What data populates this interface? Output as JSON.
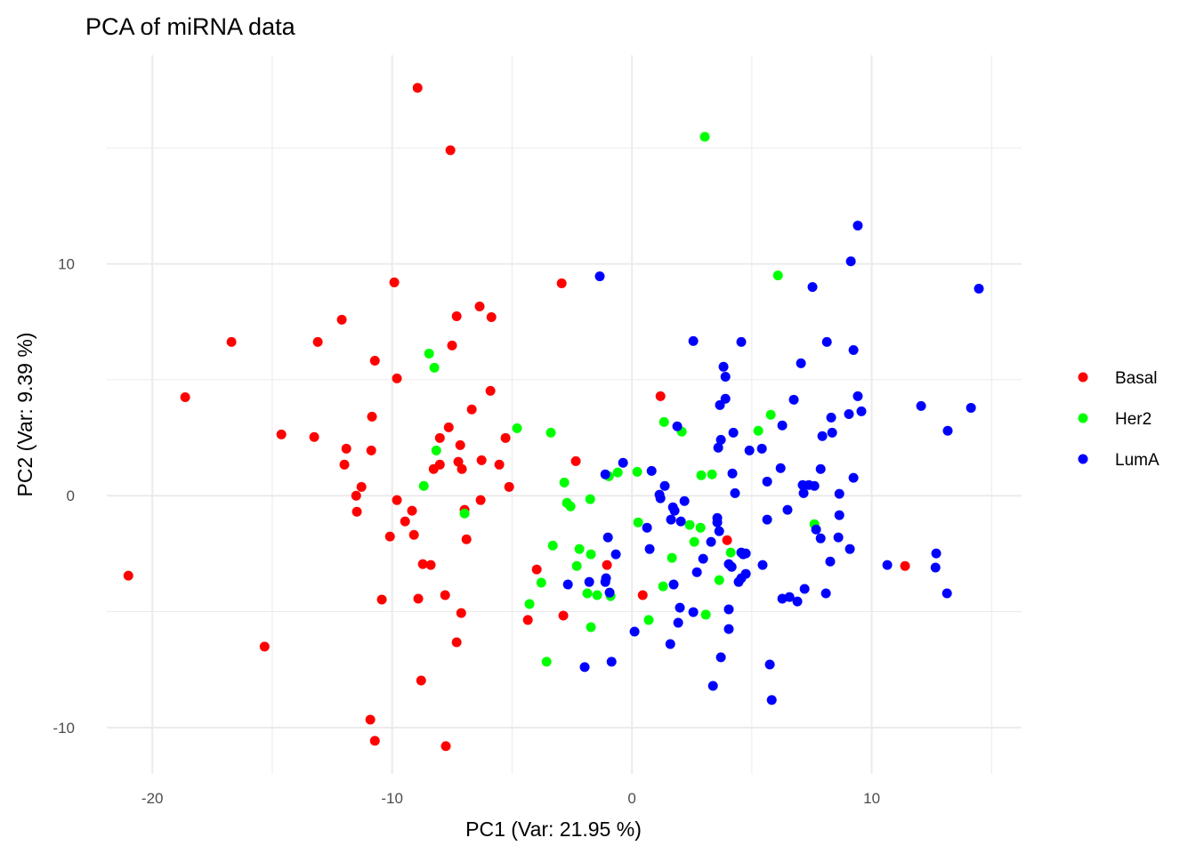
{
  "chart_data": {
    "type": "scatter",
    "title": "PCA of miRNA data",
    "xlabel": "PC1 (Var:  21.95 %)",
    "ylabel": "PC2 (Var:  9.39 %)",
    "xlim": [
      -21.9,
      16.25
    ],
    "ylim": [
      -12.0,
      19.0
    ],
    "x_ticks": [
      -20,
      -10,
      0,
      10
    ],
    "x_tick_labels": [
      "-20",
      "-10",
      "0",
      "10"
    ],
    "y_ticks": [
      -10,
      0,
      10
    ],
    "y_tick_labels": [
      "-10",
      "0",
      "10"
    ],
    "grid": true,
    "legend_position": "right",
    "series": [
      {
        "name": "Basal",
        "color": "#FF0000",
        "points": [
          [
            -8.94,
            17.59
          ],
          [
            -7.57,
            14.9
          ],
          [
            -9.91,
            9.2
          ],
          [
            -2.93,
            9.16
          ],
          [
            -6.35,
            8.16
          ],
          [
            -12.1,
            7.59
          ],
          [
            -7.31,
            7.74
          ],
          [
            -5.86,
            7.7
          ],
          [
            -16.7,
            6.63
          ],
          [
            -13.1,
            6.63
          ],
          [
            -7.5,
            6.48
          ],
          [
            -10.72,
            5.82
          ],
          [
            -9.8,
            5.06
          ],
          [
            -5.9,
            4.52
          ],
          [
            -18.63,
            4.25
          ],
          [
            1.19,
            4.29
          ],
          [
            -6.68,
            3.72
          ],
          [
            -10.84,
            3.41
          ],
          [
            -7.64,
            2.95
          ],
          [
            -14.62,
            2.64
          ],
          [
            -13.25,
            2.53
          ],
          [
            -8.01,
            2.49
          ],
          [
            -5.27,
            2.49
          ],
          [
            -7.16,
            2.18
          ],
          [
            -11.91,
            2.03
          ],
          [
            -10.87,
            1.95
          ],
          [
            -2.34,
            1.49
          ],
          [
            -6.27,
            1.53
          ],
          [
            -7.24,
            1.46
          ],
          [
            -8.01,
            1.34
          ],
          [
            -5.53,
            1.34
          ],
          [
            -11.99,
            1.34
          ],
          [
            -8.27,
            1.15
          ],
          [
            -7.09,
            1.15
          ],
          [
            -11.28,
            0.38
          ],
          [
            -5.12,
            0.38
          ],
          [
            -11.5,
            0.0
          ],
          [
            -9.8,
            -0.19
          ],
          [
            -6.31,
            -0.19
          ],
          [
            -11.47,
            -0.69
          ],
          [
            -6.98,
            -0.61
          ],
          [
            -9.46,
            -1.11
          ],
          [
            -9.17,
            -0.65
          ],
          [
            -10.09,
            -1.76
          ],
          [
            -9.09,
            -1.69
          ],
          [
            -6.9,
            -1.88
          ],
          [
            3.97,
            -1.92
          ],
          [
            -8.72,
            -2.95
          ],
          [
            -8.39,
            -2.99
          ],
          [
            -1.04,
            -2.99
          ],
          [
            -3.97,
            -3.18
          ],
          [
            -21.0,
            -3.45
          ],
          [
            11.39,
            -3.03
          ],
          [
            0.45,
            -4.29
          ],
          [
            -7.79,
            -4.29
          ],
          [
            -10.43,
            -4.48
          ],
          [
            -8.91,
            -4.44
          ],
          [
            -7.12,
            -5.06
          ],
          [
            -2.86,
            -5.17
          ],
          [
            -4.34,
            -5.36
          ],
          [
            -15.32,
            -6.51
          ],
          [
            -7.31,
            -6.32
          ],
          [
            -8.79,
            -7.97
          ],
          [
            -10.91,
            -9.66
          ],
          [
            -10.72,
            -10.57
          ],
          [
            -7.76,
            -10.8
          ]
        ]
      },
      {
        "name": "Her2",
        "color": "#00FF00",
        "points": [
          [
            3.04,
            15.48
          ],
          [
            6.09,
            9.5
          ],
          [
            -8.46,
            6.13
          ],
          [
            -8.24,
            5.52
          ],
          [
            -4.79,
            2.91
          ],
          [
            -3.38,
            2.72
          ],
          [
            -8.16,
            1.95
          ],
          [
            1.34,
            3.18
          ],
          [
            5.79,
            3.49
          ],
          [
            2.08,
            2.76
          ],
          [
            5.27,
            2.8
          ],
          [
            -0.59,
            1.0
          ],
          [
            -0.96,
            0.84
          ],
          [
            0.22,
            1.03
          ],
          [
            2.89,
            0.88
          ],
          [
            3.34,
            0.92
          ],
          [
            -2.82,
            0.57
          ],
          [
            -8.68,
            0.42
          ],
          [
            -2.71,
            -0.31
          ],
          [
            -2.56,
            -0.46
          ],
          [
            -1.74,
            -0.15
          ],
          [
            -6.98,
            -0.77
          ],
          [
            0.26,
            -1.15
          ],
          [
            2.41,
            -1.26
          ],
          [
            2.86,
            -1.38
          ],
          [
            7.61,
            -1.23
          ],
          [
            2.6,
            -1.99
          ],
          [
            -3.3,
            -2.15
          ],
          [
            -2.19,
            -2.3
          ],
          [
            4.12,
            -2.45
          ],
          [
            -1.71,
            -2.53
          ],
          [
            1.67,
            -2.68
          ],
          [
            -2.3,
            -3.03
          ],
          [
            -3.78,
            -3.75
          ],
          [
            3.64,
            -3.64
          ],
          [
            1.3,
            -3.91
          ],
          [
            -1.86,
            -4.21
          ],
          [
            -1.45,
            -4.29
          ],
          [
            -0.89,
            -4.33
          ],
          [
            -4.27,
            -4.67
          ],
          [
            0.7,
            -5.36
          ],
          [
            3.08,
            -5.13
          ],
          [
            -1.71,
            -5.67
          ],
          [
            -3.56,
            -7.16
          ]
        ]
      },
      {
        "name": "LumA",
        "color": "#0000FF",
        "points": [
          [
            9.42,
            11.65
          ],
          [
            9.13,
            10.11
          ],
          [
            -1.34,
            9.46
          ],
          [
            7.53,
            9.0
          ],
          [
            14.47,
            8.93
          ],
          [
            2.56,
            6.67
          ],
          [
            4.56,
            6.63
          ],
          [
            8.13,
            6.63
          ],
          [
            9.24,
            6.28
          ],
          [
            7.05,
            5.71
          ],
          [
            3.82,
            5.56
          ],
          [
            3.9,
            5.13
          ],
          [
            9.42,
            4.29
          ],
          [
            3.9,
            4.18
          ],
          [
            6.75,
            4.14
          ],
          [
            12.06,
            3.87
          ],
          [
            14.14,
            3.79
          ],
          [
            3.67,
            3.91
          ],
          [
            9.57,
            3.64
          ],
          [
            9.05,
            3.52
          ],
          [
            8.31,
            3.37
          ],
          [
            1.89,
            2.99
          ],
          [
            6.27,
            3.03
          ],
          [
            13.17,
            2.8
          ],
          [
            8.35,
            2.72
          ],
          [
            7.94,
            2.57
          ],
          [
            4.23,
            2.72
          ],
          [
            3.71,
            2.41
          ],
          [
            3.6,
            2.07
          ],
          [
            5.42,
            2.03
          ],
          [
            4.9,
            1.95
          ],
          [
            -0.37,
            1.42
          ],
          [
            6.2,
            1.19
          ],
          [
            7.87,
            1.15
          ],
          [
            0.82,
            1.07
          ],
          [
            -1.11,
            0.92
          ],
          [
            4.19,
            0.96
          ],
          [
            9.24,
            0.77
          ],
          [
            5.64,
            0.61
          ],
          [
            1.37,
            0.42
          ],
          [
            7.12,
            0.46
          ],
          [
            7.38,
            0.46
          ],
          [
            7.61,
            0.42
          ],
          [
            4.3,
            0.11
          ],
          [
            1.15,
            0.04
          ],
          [
            7.16,
            0.11
          ],
          [
            8.65,
            0.08
          ],
          [
            1.19,
            -0.11
          ],
          [
            2.19,
            -0.23
          ],
          [
            1.71,
            -0.5
          ],
          [
            1.78,
            -0.65
          ],
          [
            6.49,
            -0.61
          ],
          [
            8.65,
            -0.84
          ],
          [
            3.56,
            -0.96
          ],
          [
            1.63,
            -1.03
          ],
          [
            5.64,
            -1.03
          ],
          [
            3.56,
            -1.15
          ],
          [
            2.04,
            -1.11
          ],
          [
            0.63,
            -1.38
          ],
          [
            7.68,
            -1.46
          ],
          [
            3.64,
            -1.53
          ],
          [
            -1.0,
            -1.8
          ],
          [
            7.87,
            -1.84
          ],
          [
            3.3,
            -1.99
          ],
          [
            8.61,
            -1.8
          ],
          [
            0.74,
            -2.3
          ],
          [
            9.09,
            -2.3
          ],
          [
            4.56,
            -2.45
          ],
          [
            4.75,
            -2.49
          ],
          [
            4.64,
            -2.53
          ],
          [
            12.69,
            -2.49
          ],
          [
            2.97,
            -2.72
          ],
          [
            -0.67,
            -2.53
          ],
          [
            8.27,
            -2.84
          ],
          [
            4.04,
            -2.95
          ],
          [
            4.16,
            -3.07
          ],
          [
            5.45,
            -2.99
          ],
          [
            10.65,
            -2.99
          ],
          [
            12.66,
            -3.1
          ],
          [
            4.75,
            -3.37
          ],
          [
            2.71,
            -3.3
          ],
          [
            4.56,
            -3.56
          ],
          [
            -1.08,
            -3.56
          ],
          [
            -1.78,
            -3.72
          ],
          [
            -2.67,
            -3.83
          ],
          [
            -1.11,
            -3.72
          ],
          [
            4.45,
            -3.72
          ],
          [
            1.74,
            -3.83
          ],
          [
            -0.93,
            -4.18
          ],
          [
            13.14,
            -4.21
          ],
          [
            8.09,
            -4.21
          ],
          [
            7.2,
            -4.02
          ],
          [
            6.27,
            -4.44
          ],
          [
            6.57,
            -4.37
          ],
          [
            6.9,
            -4.56
          ],
          [
            2.0,
            -4.83
          ],
          [
            4.04,
            -4.9
          ],
          [
            2.56,
            -5.02
          ],
          [
            1.93,
            -5.48
          ],
          [
            4.04,
            -5.75
          ],
          [
            0.11,
            -5.86
          ],
          [
            1.6,
            -6.4
          ],
          [
            -1.97,
            -7.39
          ],
          [
            -0.85,
            -7.16
          ],
          [
            3.71,
            -6.97
          ],
          [
            5.75,
            -7.28
          ],
          [
            3.38,
            -8.2
          ],
          [
            5.83,
            -8.81
          ]
        ]
      }
    ]
  }
}
